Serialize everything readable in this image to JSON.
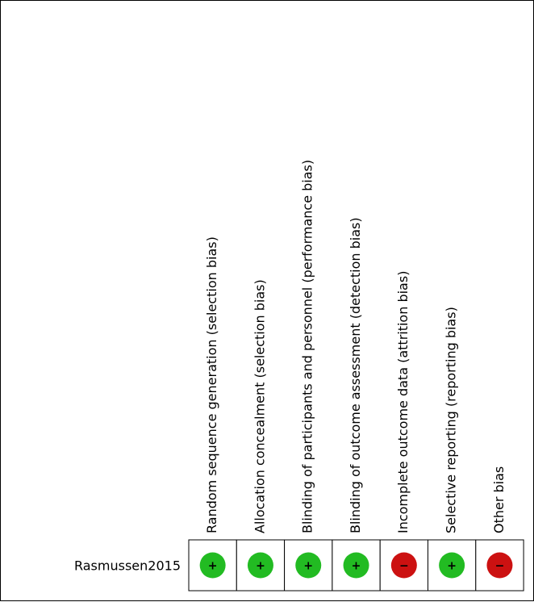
{
  "chart_data": {
    "type": "table",
    "columns": [
      "Random sequence generation (selection bias)",
      "Allocation concealment (selection bias)",
      "Blinding of participants and personnel (performance bias)",
      "Blinding of outcome assessment (detection bias)",
      "Incomplete outcome data (attrition bias)",
      "Selective reporting (reporting bias)",
      "Other bias"
    ],
    "rows": [
      {
        "study": "Rasmussen2015",
        "judgements": [
          "low",
          "low",
          "low",
          "low",
          "high",
          "low",
          "high"
        ]
      }
    ],
    "symbols": {
      "low": "+",
      "high": "−"
    },
    "colors": {
      "low": "#22bb22",
      "high": "#cc1111",
      "grid": "#000000"
    }
  }
}
